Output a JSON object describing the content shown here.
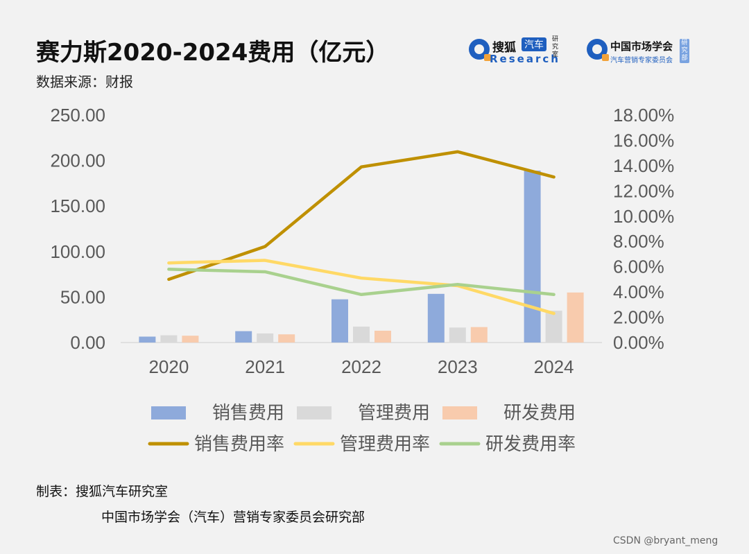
{
  "header": {
    "title": "赛力斯2020-2024费用（亿元）",
    "subtitle": "数据来源：财报"
  },
  "logos": {
    "sohu": {
      "name": "搜狐",
      "badge": "汽车",
      "research": "Research",
      "side": "研究室"
    },
    "cma": {
      "name": "中国市场学会",
      "sub": "汽车营销专家委员会",
      "side": "研究部"
    }
  },
  "footer": {
    "line1": "制表：搜狐汽车研究室",
    "line2": "中国市场学会（汽车）营销专家委员会研究部"
  },
  "watermark": "CSDN @bryant_meng",
  "colors": {
    "sales_bar": "#8eaadb",
    "admin_bar": "#d9d9d9",
    "rd_bar": "#f8cbad",
    "sales_line": "#bf9000",
    "admin_line": "#ffd966",
    "rd_line": "#a9d18e",
    "axis_text": "#595959"
  },
  "chart_data": {
    "type": "bar+line",
    "categories": [
      "2020",
      "2021",
      "2022",
      "2023",
      "2024"
    ],
    "y_left": {
      "range": [
        0,
        250
      ],
      "ticks": [
        "0.00",
        "50.00",
        "100.00",
        "150.00",
        "200.00",
        "250.00"
      ],
      "tick_values": [
        0,
        50,
        100,
        150,
        200,
        250
      ]
    },
    "y_right": {
      "range": [
        0,
        18
      ],
      "ticks": [
        "0.00%",
        "2.00%",
        "4.00%",
        "6.00%",
        "8.00%",
        "10.00%",
        "12.00%",
        "14.00%",
        "16.00%",
        "18.00%"
      ],
      "tick_values": [
        0,
        2,
        4,
        6,
        8,
        10,
        12,
        14,
        16,
        18
      ]
    },
    "bar_series": [
      {
        "name": "销售费用",
        "color_key": "sales_bar",
        "values": [
          6.5,
          12.5,
          47.5,
          53.5,
          189
        ]
      },
      {
        "name": "管理费用",
        "color_key": "admin_bar",
        "values": [
          8,
          10,
          17.5,
          16.5,
          35
        ]
      },
      {
        "name": "研发费用",
        "color_key": "rd_bar",
        "values": [
          7.5,
          9,
          13,
          17,
          55
        ]
      }
    ],
    "line_series": [
      {
        "name": "销售费用率",
        "color_key": "sales_line",
        "values": [
          5.0,
          7.6,
          13.9,
          15.1,
          13.1
        ]
      },
      {
        "name": "管理费用率",
        "color_key": "admin_line",
        "values": [
          6.3,
          6.5,
          5.1,
          4.5,
          2.3
        ]
      },
      {
        "name": "研发费用率",
        "color_key": "rd_line",
        "values": [
          5.8,
          5.6,
          3.8,
          4.6,
          3.8
        ]
      }
    ],
    "legend": {
      "position": "bottom",
      "row1": [
        "销售费用",
        "管理费用",
        "研发费用"
      ],
      "row2": [
        "销售费用率",
        "管理费用率",
        "研发费用率"
      ]
    },
    "grid": false
  }
}
